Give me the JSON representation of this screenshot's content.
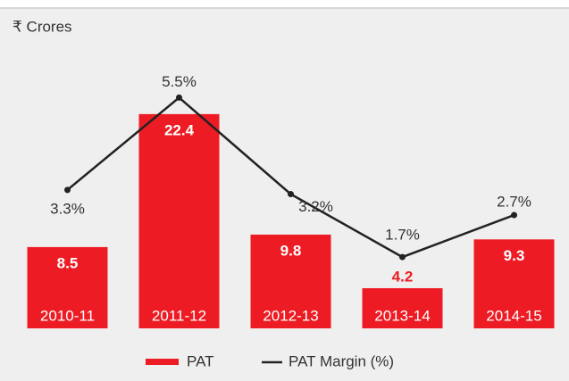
{
  "chart_data": {
    "type": "bar_line",
    "title": "₹ Crores",
    "categories": [
      "2010-11",
      "2011-12",
      "2012-13",
      "2013-14",
      "2014-15"
    ],
    "ylim": [
      0,
      25
    ],
    "y2lim": [
      0,
      5.7
    ],
    "series": [
      {
        "name": "PAT",
        "color": "#ed1c24",
        "values": [
          8.5,
          22.4,
          9.8,
          4.2,
          9.3
        ]
      },
      {
        "name": "PAT Margin (%)",
        "color": "#222222",
        "axis": "y2",
        "values": [
          3.3,
          5.5,
          3.2,
          1.7,
          2.7
        ],
        "value_labels": [
          "3.3%",
          "5.5%",
          "3.2%",
          "1.7%",
          "2.7%"
        ]
      }
    ]
  }
}
